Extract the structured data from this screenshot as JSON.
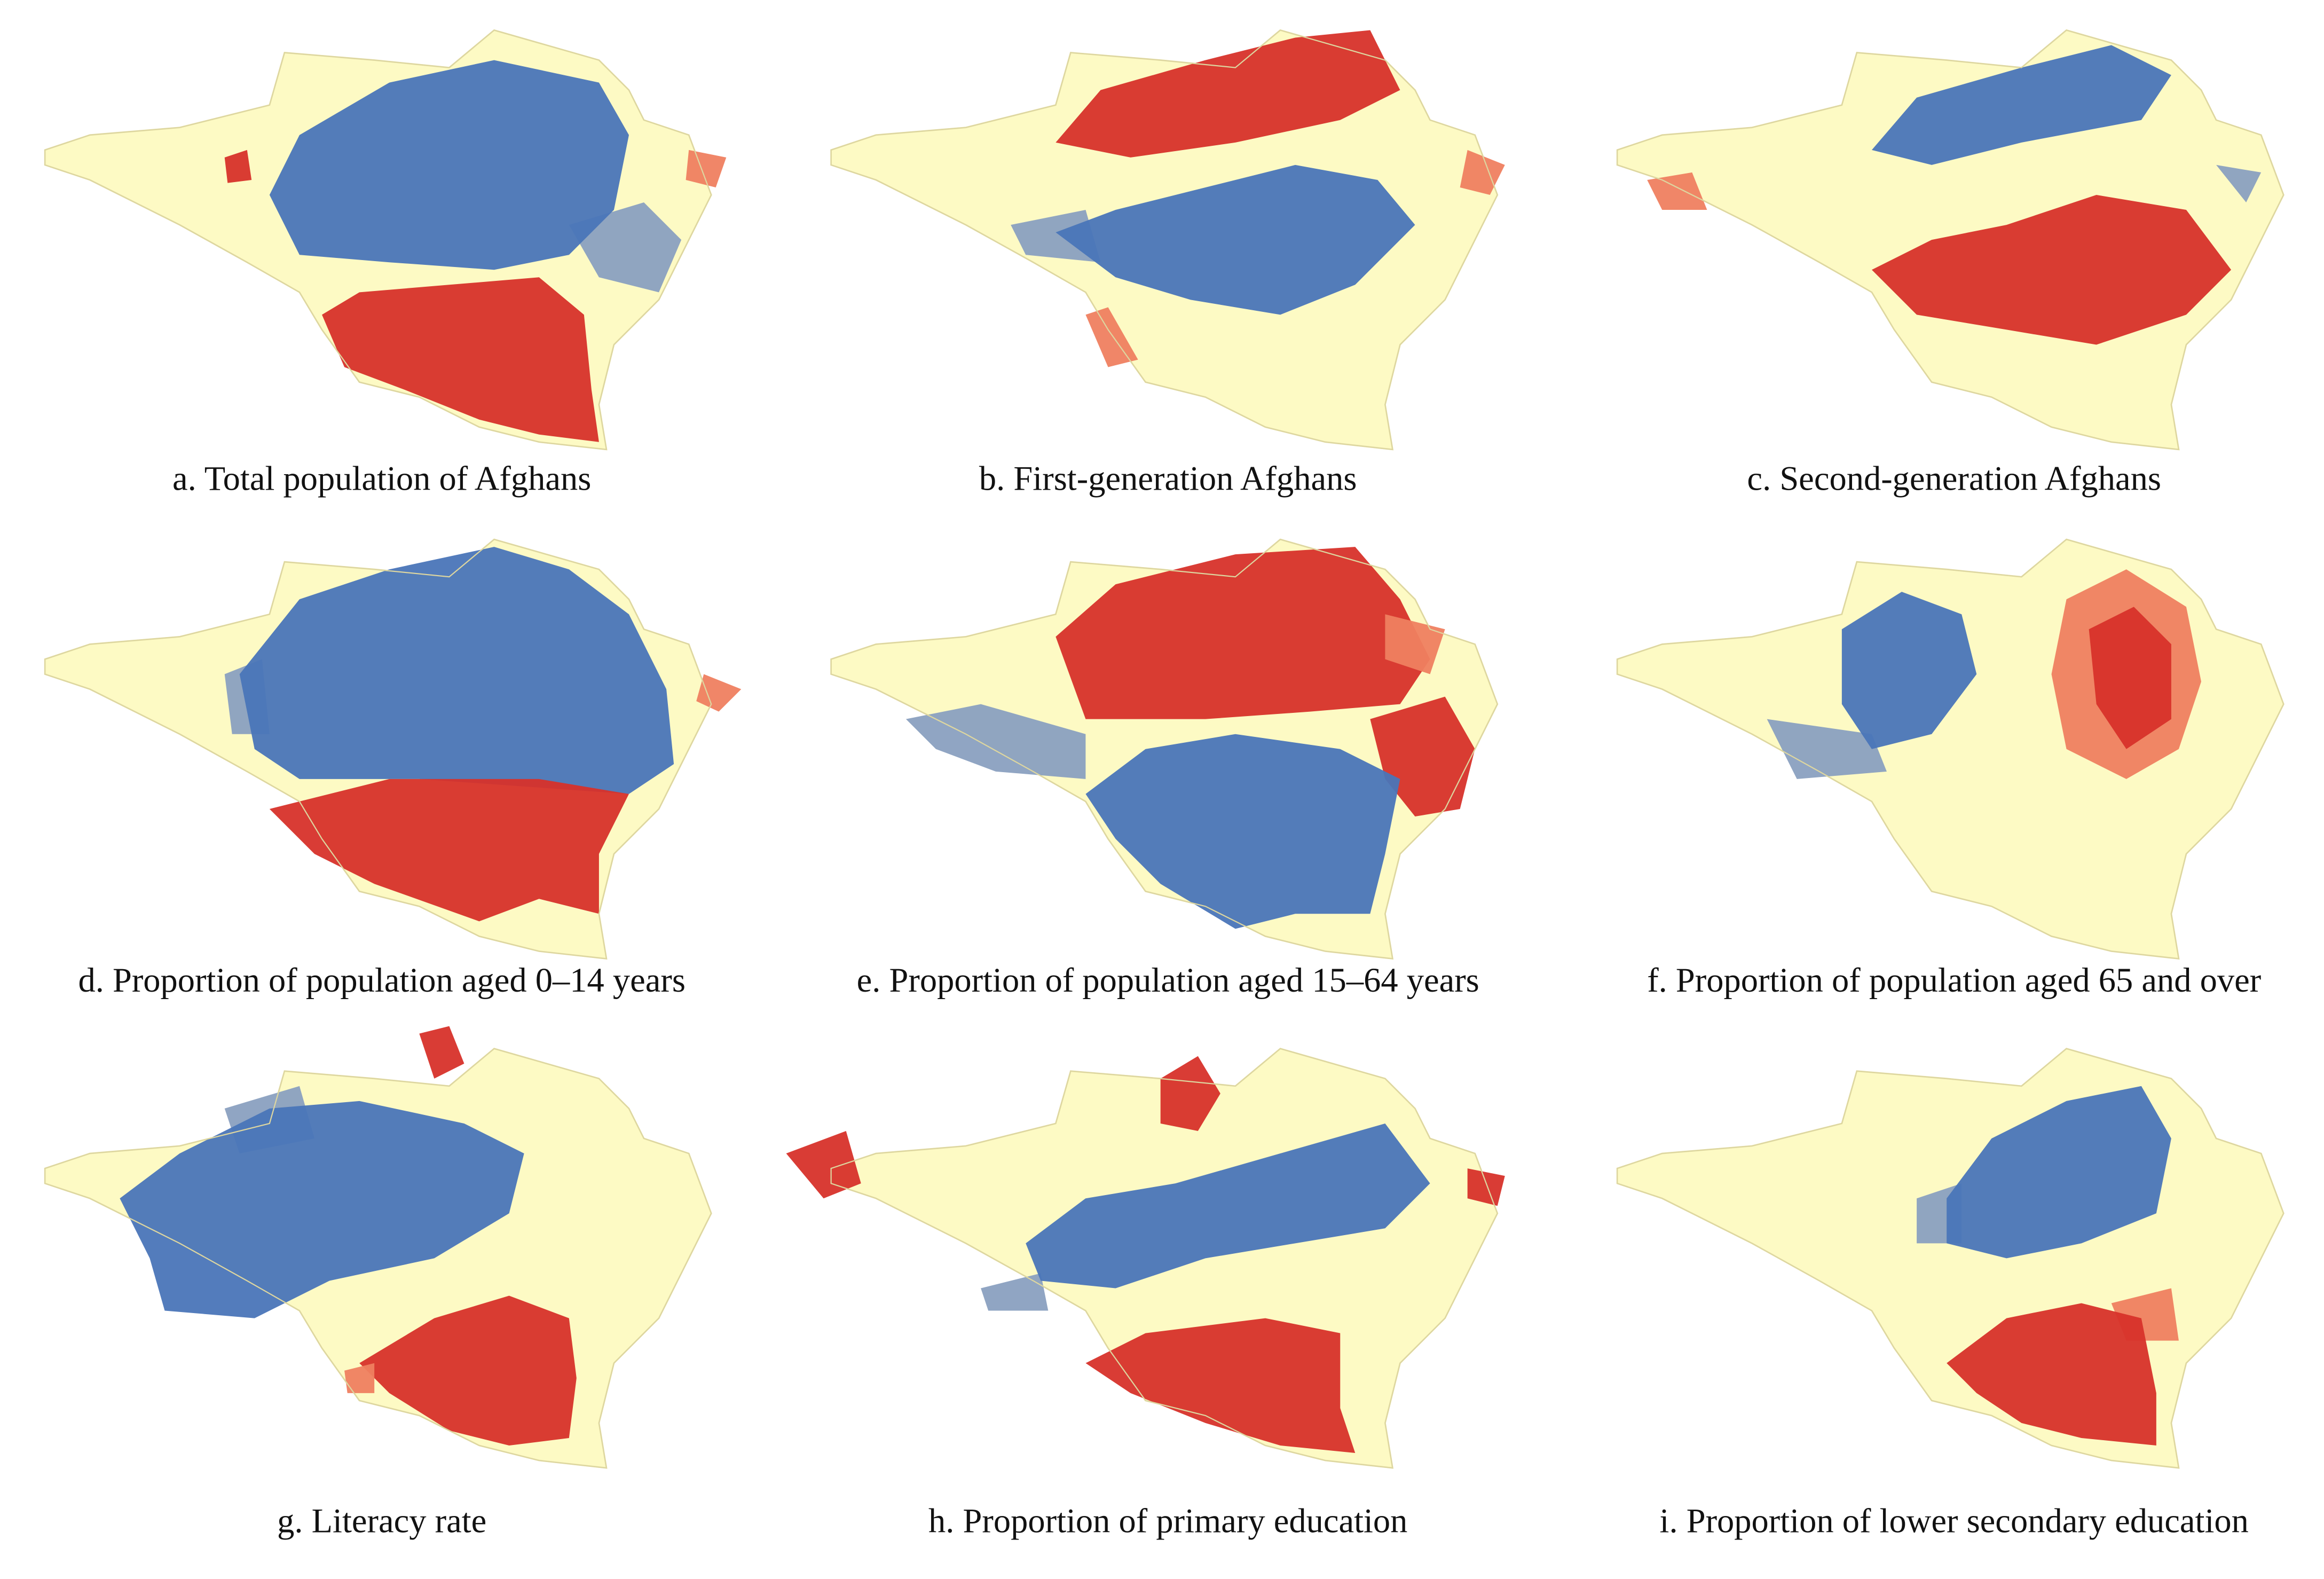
{
  "panels": [
    {
      "caption": "a. Total population of Afghans"
    },
    {
      "caption": "b. First-generation Afghans"
    },
    {
      "caption": "c. Second-generation Afghans"
    },
    {
      "caption": "d. Proportion of population aged 0–14 years"
    },
    {
      "caption": "e. Proportion of population aged 15–64 years"
    },
    {
      "caption": "f. Proportion of population aged 65 and over"
    },
    {
      "caption": "g. Literacy rate"
    },
    {
      "caption": "h. Proportion of primary education"
    },
    {
      "caption": "i. Proportion of lower secondary education"
    }
  ]
}
